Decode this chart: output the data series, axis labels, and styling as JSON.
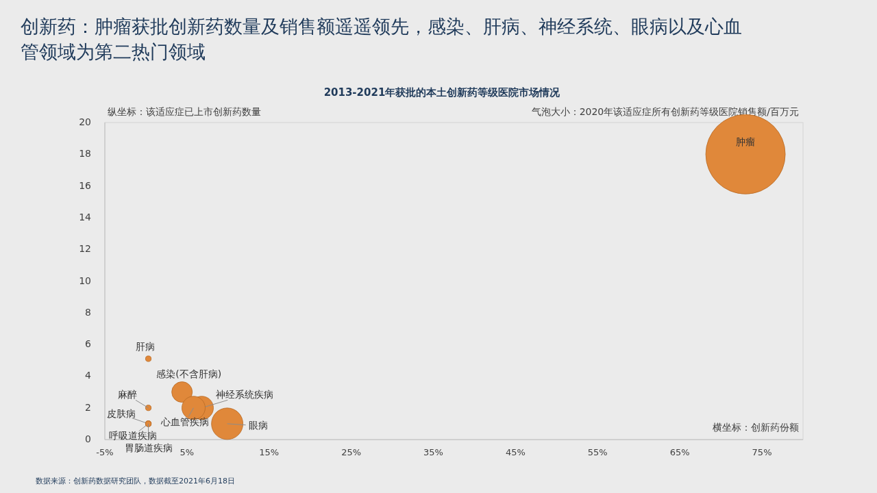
{
  "chart_data": {
    "type": "bubble",
    "title": "创新药：肿瘤获批创新药数量及销售额遥遥领先，感染、肝病、神经系统、眼病以及心血管领域为第二热门领域",
    "subtitle": "2013-2021年获批的本土创新药等级医院市场情况",
    "ylabel": "纵坐标：该适应症已上市创新药数量",
    "legend_title": "气泡大小：2020年该适应症所有创新药等级医院销售额/百万元",
    "series": [
      {
        "name": "肿瘤",
        "color": "#e0883a",
        "x": [
          73
        ],
        "values": [
          18
        ],
        "sizes": [
          1
        ]
      },
      {
        "name": "肝病",
        "color": "#e0883a",
        "x": [
          0.3
        ],
        "values": [
          5.1
        ],
        "sizes": [
          0.005
        ]
      },
      {
        "name": "感染(不含肝病)",
        "color": "#e0883a",
        "x": [
          4.4
        ],
        "values": [
          3
        ],
        "sizes": [
          0.067
        ]
      },
      {
        "name": "神经系统疾病",
        "color": "#e0883a",
        "x": [
          6.8
        ],
        "values": [
          2
        ],
        "sizes": [
          0.086
        ]
      },
      {
        "name": "心血管疾病",
        "color": "#e0883a",
        "x": [
          5.8
        ],
        "values": [
          2
        ],
        "sizes": [
          0.086
        ]
      },
      {
        "name": "眼病",
        "color": "#e0883a",
        "x": [
          9.9
        ],
        "values": [
          1
        ],
        "sizes": [
          0.157
        ]
      },
      {
        "name": "麻醉",
        "color": "#e0883a",
        "x": [
          0.3
        ],
        "values": [
          2
        ],
        "sizes": [
          0.005
        ]
      },
      {
        "name": "皮肤病",
        "color": "#e0883a",
        "x": [
          0.3
        ],
        "values": [
          1
        ],
        "sizes": [
          0.005
        ]
      },
      {
        "name": "呼吸道疾病",
        "color": "#e0883a",
        "x": [
          0.3
        ],
        "values": [
          1
        ],
        "sizes": [
          0.005
        ]
      },
      {
        "name": "胃肠道疾病",
        "color": "#e0883a",
        "x": [
          0.3
        ],
        "values": [
          1
        ],
        "sizes": [
          0.005
        ]
      }
    ],
    "xlim": [
      -5,
      80
    ],
    "xticks": [
      {
        "value": -5,
        "label": "-5%"
      },
      {
        "value": 5,
        "label": "5%"
      },
      {
        "value": 15,
        "label": "15%"
      },
      {
        "value": 25,
        "label": "25%"
      },
      {
        "value": 35,
        "label": "35%"
      },
      {
        "value": 45,
        "label": "45%"
      },
      {
        "value": 55,
        "label": "55%"
      },
      {
        "value": 65,
        "label": "65%"
      },
      {
        "value": 75,
        "label": "75%"
      }
    ],
    "ylim": [
      0,
      20
    ],
    "yticks": [
      0,
      2,
      4,
      6,
      8,
      10,
      12,
      14,
      16,
      18,
      20
    ],
    "annotations": [
      "横坐标：创新药份额",
      "数据来源：创新药数据研究团队，数据截至2021年6月18日"
    ],
    "grid": false,
    "legend": false
  }
}
